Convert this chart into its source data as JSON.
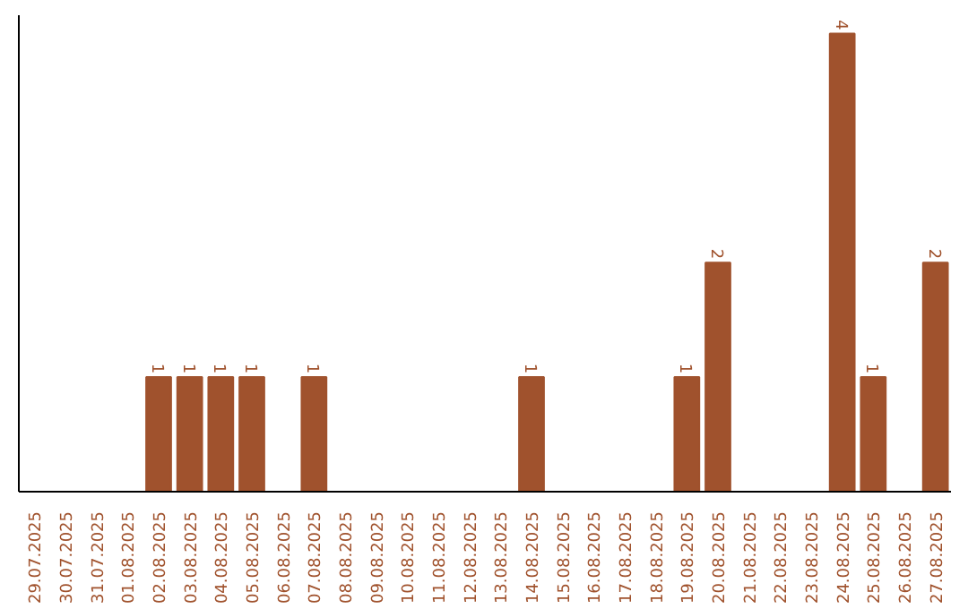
{
  "chart_data": {
    "type": "bar",
    "categories": [
      "29.07.2025",
      "30.07.2025",
      "31.07.2025",
      "01.08.2025",
      "02.08.2025",
      "03.08.2025",
      "04.08.2025",
      "05.08.2025",
      "06.08.2025",
      "07.08.2025",
      "08.08.2025",
      "09.08.2025",
      "10.08.2025",
      "11.08.2025",
      "12.08.2025",
      "13.08.2025",
      "14.08.2025",
      "15.08.2025",
      "16.08.2025",
      "17.08.2025",
      "18.08.2025",
      "19.08.2025",
      "20.08.2025",
      "21.08.2025",
      "22.08.2025",
      "23.08.2025",
      "24.08.2025",
      "25.08.2025",
      "26.08.2025",
      "27.08.2025"
    ],
    "values": [
      null,
      null,
      null,
      null,
      1,
      1,
      1,
      1,
      null,
      1,
      null,
      null,
      null,
      null,
      null,
      null,
      1,
      null,
      null,
      null,
      null,
      1,
      2,
      null,
      null,
      null,
      4,
      1,
      null,
      2
    ],
    "color": "#a0522d",
    "data_labels": true,
    "tick_labels": "x",
    "grid": false
  }
}
